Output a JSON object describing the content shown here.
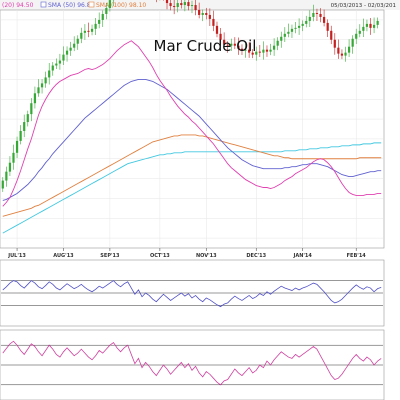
{
  "header": {
    "date_range": "05/03/2013 - 02/03/201"
  },
  "chart_data": {
    "type": "candlestick",
    "title": "Mar Crude Oil",
    "legend": [
      {
        "label": "(20) 94.50",
        "color": "#e040b0",
        "show_box": false
      },
      {
        "label": "SMA (50) 96.83",
        "color": "#6060d0",
        "show_box": true
      },
      {
        "label": "SMA (100) 98.10",
        "color": "#e08040",
        "show_box": true
      }
    ],
    "x_ticks": [
      "JUL'13",
      "AUG'13",
      "SEP'13",
      "OCT'13",
      "NOV'13",
      "DEC'13",
      "JAN'14",
      "FEB'14"
    ],
    "ylim": [
      89,
      113
    ],
    "candle_seed": [
      95.0,
      0.8,
      0.9,
      0.9,
      1.0,
      1.2,
      1.0,
      0.9,
      0.8,
      1.1,
      1.0,
      0.6,
      0.4,
      0.6,
      0.7,
      0.5,
      0.2,
      0.3,
      0.6,
      0.4,
      0.3,
      0.4,
      0.5,
      0.6,
      0.2,
      -0.1,
      0.3,
      0.5,
      0.4,
      0.6,
      0.6,
      0.8,
      0.7,
      0.4,
      0.6,
      0.9,
      0.5,
      -0.6,
      0.5,
      -0.8,
      0.4,
      -0.2,
      -0.6,
      -0.9,
      -0.4,
      0.3,
      -0.5,
      -0.6,
      -0.3,
      -0.1,
      0.4,
      -0.2,
      0.3,
      -0.4,
      0.1,
      -0.5,
      -0.5,
      0.2,
      -0.2,
      -0.4,
      -0.7,
      -0.8,
      -0.6,
      -0.5,
      -0.1,
      0.2,
      -0.2,
      -0.3,
      -0.2,
      0.1,
      -0.3,
      -0.2,
      0.3,
      -0.1,
      0.3,
      -0.2,
      0.2,
      0.4,
      0.5,
      0.4,
      0.3,
      0.2,
      0.3,
      0.1,
      0.2,
      0.2,
      0.3,
      0.4,
      0.4,
      -0.1,
      -0.3,
      -0.6,
      -0.8,
      -0.9,
      -0.8,
      -0.6,
      -0.2,
      0.3,
      0.6,
      0.8,
      0.5,
      0.3,
      0.4,
      0.3,
      -0.4,
      0.3,
      0.4
    ],
    "sma20": [
      93.2,
      93.6,
      94.1,
      94.9,
      95.8,
      96.8,
      97.9,
      99.0,
      100.0,
      101.2,
      102.4,
      103.3,
      104.0,
      104.6,
      105.1,
      105.5,
      105.8,
      106.0,
      106.2,
      106.4,
      106.5,
      106.6,
      106.8,
      107.0,
      107.1,
      107.0,
      107.1,
      107.3,
      107.5,
      107.8,
      108.1,
      108.5,
      108.9,
      109.2,
      109.5,
      109.7,
      109.9,
      109.6,
      109.3,
      108.8,
      108.3,
      107.8,
      107.2,
      106.5,
      105.9,
      105.4,
      104.9,
      104.3,
      103.8,
      103.3,
      102.9,
      102.5,
      102.2,
      101.8,
      101.5,
      101.1,
      100.7,
      100.3,
      99.9,
      99.5,
      99.0,
      98.5,
      98.0,
      97.5,
      97.1,
      96.8,
      96.5,
      96.2,
      95.9,
      95.7,
      95.5,
      95.3,
      95.2,
      95.1,
      95.1,
      95.0,
      95.1,
      95.3,
      95.5,
      95.8,
      96.0,
      96.2,
      96.5,
      96.7,
      96.9,
      97.1,
      97.4,
      97.7,
      97.9,
      98.0,
      97.9,
      97.6,
      97.2,
      96.7,
      96.1,
      95.5,
      95.0,
      94.6,
      94.4,
      94.3,
      94.3,
      94.3,
      94.4,
      94.4,
      94.4,
      94.5,
      94.5
    ],
    "sma50": [
      93.8,
      93.9,
      94.1,
      94.3,
      94.5,
      94.8,
      95.1,
      95.4,
      95.8,
      96.2,
      96.7,
      97.1,
      97.6,
      98.0,
      98.5,
      98.9,
      99.3,
      99.7,
      100.1,
      100.5,
      100.9,
      101.3,
      101.7,
      102.1,
      102.4,
      102.7,
      103.0,
      103.3,
      103.6,
      103.9,
      104.2,
      104.5,
      104.8,
      105.1,
      105.4,
      105.6,
      105.8,
      105.9,
      106.0,
      106.0,
      106.0,
      105.9,
      105.8,
      105.6,
      105.4,
      105.2,
      105.0,
      104.7,
      104.4,
      104.1,
      103.8,
      103.5,
      103.2,
      102.9,
      102.6,
      102.3,
      101.9,
      101.5,
      101.1,
      100.7,
      100.3,
      99.9,
      99.5,
      99.1,
      98.8,
      98.5,
      98.2,
      97.9,
      97.7,
      97.5,
      97.3,
      97.2,
      97.1,
      97.0,
      97.0,
      97.0,
      97.0,
      97.0,
      97.0,
      97.1,
      97.1,
      97.2,
      97.2,
      97.3,
      97.4,
      97.4,
      97.5,
      97.5,
      97.5,
      97.4,
      97.3,
      97.2,
      97.0,
      96.8,
      96.6,
      96.4,
      96.3,
      96.2,
      96.2,
      96.3,
      96.4,
      96.5,
      96.6,
      96.7,
      96.7,
      96.8,
      96.8
    ],
    "sma100": [
      92.2,
      92.3,
      92.4,
      92.5,
      92.6,
      92.7,
      92.8,
      92.9,
      93.0,
      93.2,
      93.3,
      93.5,
      93.7,
      93.9,
      94.1,
      94.3,
      94.5,
      94.7,
      94.9,
      95.1,
      95.3,
      95.5,
      95.7,
      95.9,
      96.1,
      96.3,
      96.5,
      96.7,
      96.9,
      97.1,
      97.3,
      97.5,
      97.7,
      97.9,
      98.1,
      98.3,
      98.5,
      98.7,
      98.9,
      99.1,
      99.3,
      99.5,
      99.7,
      99.8,
      99.9,
      100.0,
      100.1,
      100.2,
      100.3,
      100.3,
      100.4,
      100.4,
      100.4,
      100.4,
      100.4,
      100.3,
      100.3,
      100.2,
      100.1,
      100.0,
      99.9,
      99.8,
      99.7,
      99.6,
      99.5,
      99.4,
      99.3,
      99.2,
      99.1,
      99.0,
      98.9,
      98.8,
      98.7,
      98.6,
      98.5,
      98.4,
      98.3,
      98.3,
      98.2,
      98.1,
      98.1,
      98.0,
      98.0,
      98.0,
      98.0,
      98.0,
      98.0,
      98.0,
      98.0,
      98.0,
      98.0,
      98.0,
      98.0,
      98.0,
      98.0,
      98.0,
      98.0,
      98.0,
      98.0,
      98.0,
      98.1,
      98.1,
      98.1,
      98.1,
      98.1,
      98.1,
      98.1
    ],
    "sma200": [
      90.5,
      90.7,
      90.9,
      91.1,
      91.3,
      91.5,
      91.7,
      91.9,
      92.1,
      92.3,
      92.5,
      92.7,
      92.9,
      93.1,
      93.3,
      93.5,
      93.7,
      93.9,
      94.1,
      94.3,
      94.5,
      94.7,
      94.9,
      95.1,
      95.3,
      95.5,
      95.7,
      95.9,
      96.1,
      96.3,
      96.5,
      96.7,
      96.9,
      97.1,
      97.3,
      97.5,
      97.6,
      97.7,
      97.8,
      97.9,
      98.0,
      98.1,
      98.2,
      98.3,
      98.4,
      98.4,
      98.5,
      98.5,
      98.6,
      98.6,
      98.6,
      98.7,
      98.7,
      98.7,
      98.7,
      98.7,
      98.7,
      98.7,
      98.7,
      98.7,
      98.7,
      98.7,
      98.7,
      98.7,
      98.7,
      98.7,
      98.7,
      98.7,
      98.7,
      98.7,
      98.7,
      98.7,
      98.7,
      98.7,
      98.7,
      98.7,
      98.7,
      98.7,
      98.7,
      98.8,
      98.8,
      98.8,
      98.8,
      98.9,
      98.9,
      98.9,
      99.0,
      99.0,
      99.0,
      99.1,
      99.1,
      99.1,
      99.2,
      99.2,
      99.2,
      99.3,
      99.3,
      99.3,
      99.4,
      99.4,
      99.4,
      99.5,
      99.5,
      99.5,
      99.6,
      99.6,
      99.6
    ],
    "rsi": [
      55,
      60,
      66,
      70,
      68,
      62,
      58,
      64,
      70,
      66,
      60,
      57,
      62,
      68,
      64,
      58,
      55,
      60,
      65,
      61,
      57,
      60,
      64,
      59,
      55,
      52,
      56,
      61,
      58,
      62,
      66,
      70,
      64,
      60,
      65,
      68,
      58,
      48,
      55,
      44,
      50,
      46,
      40,
      36,
      42,
      48,
      43,
      38,
      42,
      46,
      50,
      45,
      49,
      42,
      46,
      40,
      36,
      42,
      39,
      35,
      31,
      28,
      32,
      34,
      40,
      45,
      41,
      38,
      42,
      46,
      41,
      44,
      49,
      46,
      52,
      48,
      53,
      57,
      61,
      58,
      56,
      54,
      58,
      55,
      58,
      60,
      63,
      66,
      64,
      58,
      52,
      45,
      38,
      34,
      36,
      40,
      46,
      52,
      58,
      63,
      59,
      56,
      60,
      58,
      52,
      57,
      59
    ],
    "rsi_levels": [
      70,
      50,
      30
    ],
    "stoch": [
      68,
      75,
      82,
      86,
      80,
      72,
      66,
      74,
      82,
      78,
      70,
      64,
      72,
      80,
      74,
      66,
      62,
      70,
      76,
      70,
      64,
      68,
      74,
      68,
      62,
      58,
      64,
      72,
      68,
      74,
      80,
      84,
      76,
      70,
      76,
      80,
      66,
      52,
      60,
      46,
      54,
      48,
      40,
      34,
      42,
      50,
      44,
      36,
      42,
      48,
      54,
      46,
      52,
      42,
      48,
      38,
      32,
      40,
      36,
      30,
      24,
      20,
      26,
      28,
      36,
      44,
      38,
      34,
      40,
      46,
      38,
      42,
      50,
      46,
      56,
      50,
      58,
      64,
      70,
      66,
      62,
      60,
      66,
      62,
      66,
      70,
      74,
      78,
      74,
      64,
      54,
      44,
      34,
      28,
      30,
      36,
      44,
      52,
      60,
      66,
      60,
      56,
      62,
      58,
      50,
      56,
      60
    ],
    "stoch_levels": [
      80,
      50,
      20
    ]
  }
}
